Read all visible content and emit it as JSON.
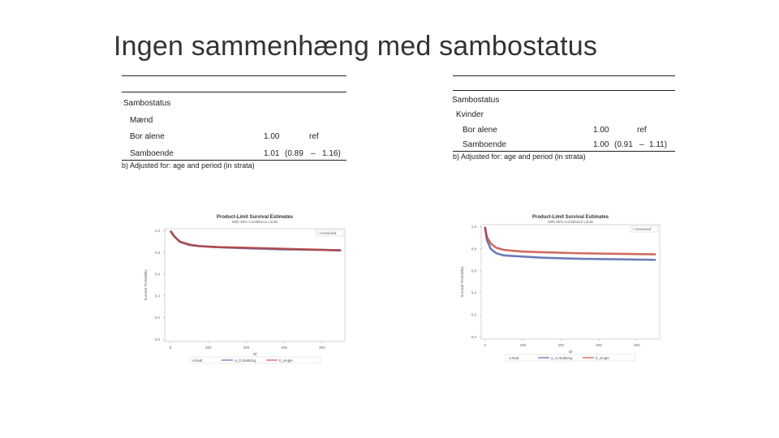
{
  "title": "Ingen sammenhæng med sambostatus",
  "tables": [
    {
      "header": "Sambostatus",
      "group": "Mænd",
      "rows": [
        [
          "Bor alene",
          "1.00",
          "ref"
        ],
        [
          "Samboende",
          "1.01",
          "(0.89",
          "–",
          "1.16)"
        ]
      ],
      "footnote": "b) Adjusted for: age and period (in strata)"
    },
    {
      "header": "Sambostatus",
      "group": "Kvinder",
      "rows": [
        [
          "Bor alene",
          "1.00",
          "ref"
        ],
        [
          "Samboende",
          "1.00",
          "(0.91",
          "–",
          "1.11)"
        ]
      ],
      "footnote": "b) Adjusted for: age and period (in strata)"
    }
  ],
  "charts": [
    {
      "type": "line",
      "title": "Product-Limit Survival Estimates",
      "subtitle": "With 95% Confidence Limits",
      "censor_label": "+ Censored",
      "x_label": "tid",
      "y_label": "Survival Probability",
      "legend_title": "cohab:",
      "xlim": [
        -30,
        920
      ],
      "ylim": [
        -0.02,
        1.02
      ],
      "xticks": [
        0,
        200,
        400,
        600,
        800
      ],
      "yticks": [
        {
          "value": 0,
          "label": "0.0"
        },
        {
          "value": 0.2,
          "label": "0.2"
        },
        {
          "value": 0.4,
          "label": "0.4"
        },
        {
          "value": 0.6,
          "label": "0.6"
        },
        {
          "value": 0.8,
          "label": "0.8"
        },
        {
          "value": 1,
          "label": "1.0"
        }
      ],
      "series": [
        {
          "name": "a_Cohabiting",
          "color": "#3b4fa0",
          "x": [
            0,
            20,
            50,
            100,
            150,
            250,
            400,
            600,
            800,
            900
          ],
          "values": [
            1,
            0.95,
            0.9,
            0.87,
            0.86,
            0.85,
            0.84,
            0.83,
            0.825,
            0.82
          ]
        },
        {
          "name": "b_single",
          "color": "#c0392b",
          "x": [
            0,
            20,
            50,
            100,
            150,
            250,
            400,
            600,
            800,
            900
          ],
          "values": [
            1,
            0.95,
            0.9,
            0.875,
            0.86,
            0.85,
            0.845,
            0.835,
            0.825,
            0.82
          ]
        }
      ]
    },
    {
      "type": "line",
      "title": "Product-Limit Survival Estimates",
      "subtitle": "With 95% Confidence Limits",
      "censor_label": "+ Censored",
      "x_label": "tid",
      "y_label": "Survival Probability",
      "legend_title": "cohab:",
      "xlim": [
        -20,
        920
      ],
      "ylim": [
        -0.02,
        1.02
      ],
      "xticks": [
        0,
        200,
        400,
        600,
        800
      ],
      "yticks": [
        {
          "value": 0,
          "label": "0.0"
        },
        {
          "value": 0.2,
          "label": "0.2"
        },
        {
          "value": 0.4,
          "label": "0.4"
        },
        {
          "value": 0.6,
          "label": "0.6"
        },
        {
          "value": 0.8,
          "label": "0.8"
        },
        {
          "value": 1,
          "label": "1.0"
        }
      ],
      "series": [
        {
          "name": "a_Cohabiting",
          "color": "#3b4fa0",
          "x": [
            0,
            10,
            30,
            60,
            100,
            200,
            300,
            500,
            700,
            900
          ],
          "values": [
            1,
            0.88,
            0.8,
            0.76,
            0.74,
            0.73,
            0.72,
            0.71,
            0.705,
            0.7
          ]
        },
        {
          "name": "b_single",
          "color": "#c0392b",
          "x": [
            0,
            10,
            30,
            60,
            100,
            200,
            300,
            500,
            700,
            900
          ],
          "values": [
            1,
            0.91,
            0.85,
            0.81,
            0.79,
            0.775,
            0.77,
            0.76,
            0.755,
            0.75
          ]
        }
      ]
    }
  ]
}
